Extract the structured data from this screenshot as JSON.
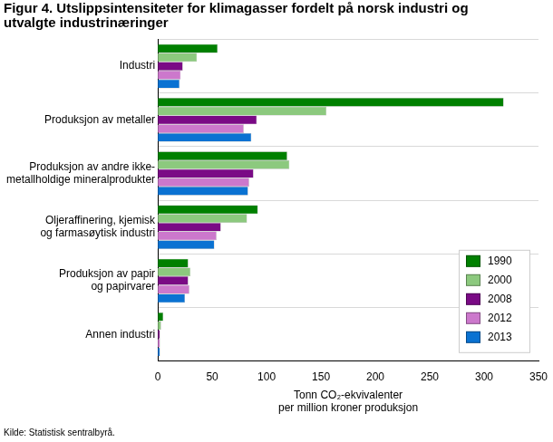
{
  "chart_data": {
    "type": "bar",
    "orientation": "horizontal",
    "title": [
      "Figur 4. Utslippsintensiteter for klimagasser fordelt på norsk industri og",
      "utvalgte industrinæringer"
    ],
    "x_label": [
      "Tonn CO₂-ekvivalenter",
      "per million kroner produksjon"
    ],
    "source": "Kilde: Statistisk sentralbyrå.",
    "categories": [
      "Industri",
      "Produksjon av metaller",
      "Produksjon av andre ikke-\nmetallholdige mineralprodukter",
      "Oljeraffinering, kjemisk\nog farmasøytisk industri",
      "Produksjon av papir\nog papirvarer",
      "Annen industri"
    ],
    "series": [
      {
        "name": "1990",
        "color": "#008000",
        "values": [
          55,
          318,
          119,
          92,
          28,
          5
        ]
      },
      {
        "name": "2000",
        "color": "#8cc97e",
        "values": [
          36,
          155,
          121,
          82,
          30,
          3
        ]
      },
      {
        "name": "2008",
        "color": "#7a0a85",
        "values": [
          23,
          91,
          88,
          58,
          28,
          2
        ]
      },
      {
        "name": "2012",
        "color": "#cc78cc",
        "values": [
          21,
          79,
          84,
          54,
          29,
          2
        ]
      },
      {
        "name": "2013",
        "color": "#0a72d2",
        "values": [
          20,
          86,
          83,
          52,
          25,
          2
        ]
      }
    ],
    "xlim": [
      0,
      350
    ],
    "xticks": [
      0,
      50,
      100,
      150,
      200,
      250,
      300,
      350
    ],
    "grid": true,
    "legend": "bottom-right"
  }
}
